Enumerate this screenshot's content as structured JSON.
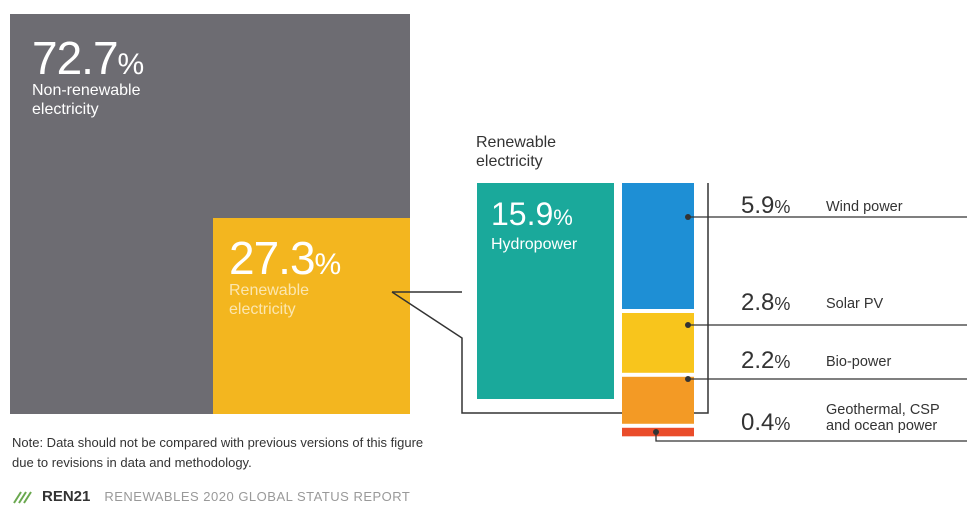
{
  "chart_data": {
    "type": "treemap",
    "main": [
      {
        "name": "Non-renewable electricity",
        "value": 72.7,
        "value_label": "72.7",
        "unit": "%",
        "color": "#6d6c72"
      },
      {
        "name": "Renewable electricity",
        "value": 27.3,
        "value_label": "27.3",
        "unit": "%",
        "color": "#f3b61f"
      }
    ],
    "breakdown_title": "Renewable electricity",
    "breakdown": [
      {
        "name": "Hydropower",
        "value": 15.9,
        "value_label": "15.9",
        "unit": "%",
        "color": "#1aa99b"
      },
      {
        "name": "Wind power",
        "value": 5.9,
        "value_label": "5.9",
        "unit": "%",
        "color": "#1e8fd5"
      },
      {
        "name": "Solar PV",
        "value": 2.8,
        "value_label": "2.8",
        "unit": "%",
        "color": "#f8c51c"
      },
      {
        "name": "Bio-power",
        "value": 2.2,
        "value_label": "2.2",
        "unit": "%",
        "color": "#f39a25"
      },
      {
        "name": "Geothermal, CSP and ocean power",
        "value": 0.4,
        "value_label": "0.4",
        "unit": "%",
        "color": "#ea4c2a",
        "label_lines": [
          "Geothermal, CSP",
          "and ocean power"
        ]
      }
    ]
  },
  "note": {
    "line1": "Note: Data should not be compared with previous versions of this figure",
    "line2": "due to revisions in data and methodology."
  },
  "footer": {
    "brand": "REN21",
    "report": "RENEWABLES 2020 GLOBAL STATUS REPORT"
  }
}
